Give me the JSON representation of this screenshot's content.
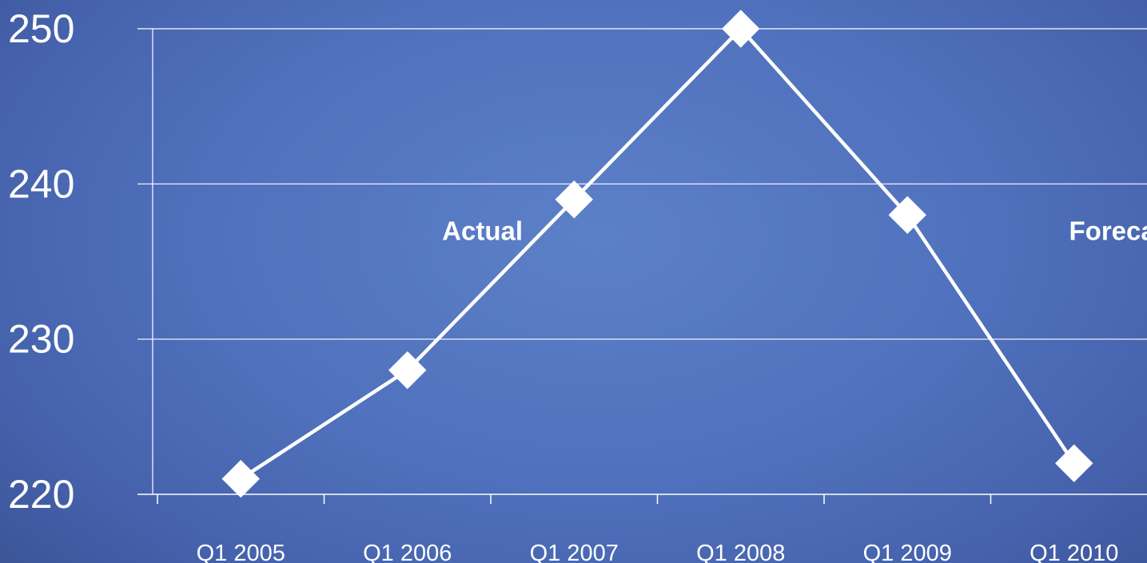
{
  "chart_data": {
    "type": "line",
    "title": "",
    "xlabel": "",
    "ylabel": "",
    "categories": [
      "Q1 2005",
      "Q1 2006",
      "Q1 2007",
      "Q1 2008",
      "Q1 2009",
      "Q1 2010"
    ],
    "y_ticks": [
      "220",
      "230",
      "240",
      "250"
    ],
    "ylim": [
      220,
      250
    ],
    "grid": true,
    "legend": "none",
    "series": [
      {
        "x": [
          0.5,
          1.5,
          2.5,
          3.5,
          4.5,
          5.5
        ],
        "values": [
          221,
          228,
          239,
          250,
          238,
          222
        ],
        "marker": "diamond",
        "color": "#ffffff"
      }
    ],
    "annotations": [
      {
        "text": "Actual",
        "x": 1.95,
        "y": 237
      },
      {
        "text": "Forecast",
        "x": 5.8,
        "y": 237
      }
    ],
    "colors": {
      "background": "#5071bd",
      "line": "#ffffff",
      "grid": "#ffffff",
      "text": "#ffffff"
    }
  }
}
